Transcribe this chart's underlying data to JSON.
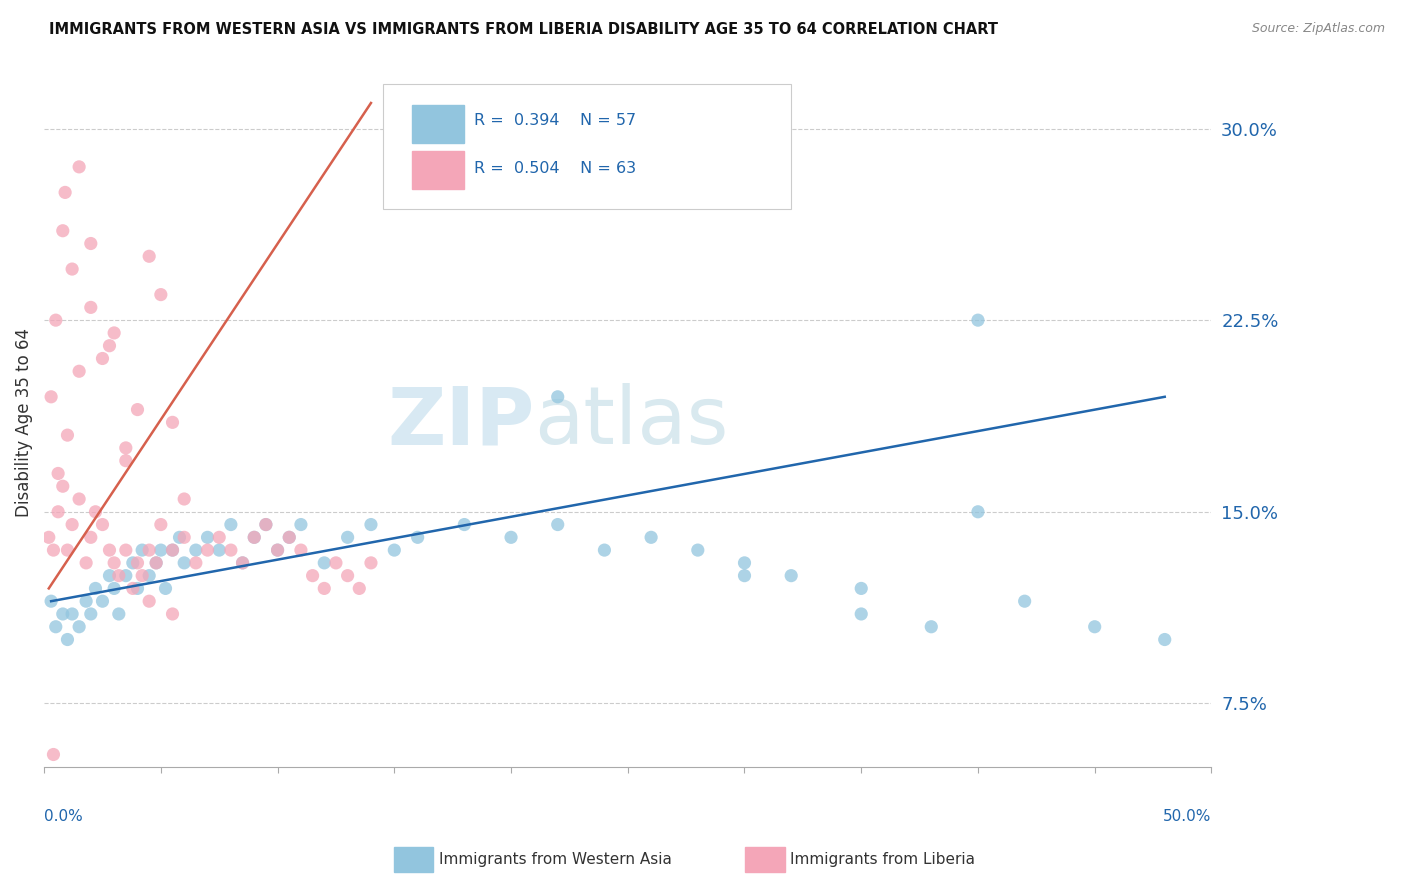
{
  "title": "IMMIGRANTS FROM WESTERN ASIA VS IMMIGRANTS FROM LIBERIA DISABILITY AGE 35 TO 64 CORRELATION CHART",
  "source": "Source: ZipAtlas.com",
  "ylabel": "Disability Age 35 to 64",
  "yticks": [
    7.5,
    15.0,
    22.5,
    30.0
  ],
  "ytick_labels": [
    "7.5%",
    "15.0%",
    "22.5%",
    "30.0%"
  ],
  "xlim": [
    0,
    50
  ],
  "ylim": [
    5.0,
    32.0
  ],
  "color_blue": "#92c5de",
  "color_pink": "#f4a6b8",
  "color_blue_dark": "#2166ac",
  "color_pink_dark": "#d6604d",
  "watermark_zip": "ZIP",
  "watermark_atlas": "atlas",
  "blue_scatter_x": [
    0.3,
    0.5,
    0.8,
    1.0,
    1.2,
    1.5,
    1.8,
    2.0,
    2.2,
    2.5,
    2.8,
    3.0,
    3.2,
    3.5,
    3.8,
    4.0,
    4.2,
    4.5,
    4.8,
    5.0,
    5.2,
    5.5,
    5.8,
    6.0,
    6.5,
    7.0,
    7.5,
    8.0,
    8.5,
    9.0,
    9.5,
    10.0,
    10.5,
    11.0,
    12.0,
    13.0,
    14.0,
    15.0,
    16.0,
    18.0,
    20.0,
    22.0,
    24.0,
    26.0,
    28.0,
    30.0,
    32.0,
    35.0,
    38.0,
    40.0,
    42.0,
    45.0,
    48.0,
    30.0,
    35.0,
    40.0,
    22.0
  ],
  "blue_scatter_y": [
    11.5,
    10.5,
    11.0,
    10.0,
    11.0,
    10.5,
    11.5,
    11.0,
    12.0,
    11.5,
    12.5,
    12.0,
    11.0,
    12.5,
    13.0,
    12.0,
    13.5,
    12.5,
    13.0,
    13.5,
    12.0,
    13.5,
    14.0,
    13.0,
    13.5,
    14.0,
    13.5,
    14.5,
    13.0,
    14.0,
    14.5,
    13.5,
    14.0,
    14.5,
    13.0,
    14.0,
    14.5,
    13.5,
    14.0,
    14.5,
    14.0,
    14.5,
    13.5,
    14.0,
    13.5,
    13.0,
    12.5,
    11.0,
    10.5,
    15.0,
    11.5,
    10.5,
    10.0,
    12.5,
    12.0,
    22.5,
    19.5
  ],
  "pink_scatter_x": [
    0.2,
    0.4,
    0.6,
    0.8,
    1.0,
    1.2,
    1.5,
    1.8,
    2.0,
    2.2,
    2.5,
    2.8,
    3.0,
    3.2,
    3.5,
    3.8,
    4.0,
    4.2,
    4.5,
    4.8,
    5.0,
    5.5,
    6.0,
    6.5,
    7.0,
    7.5,
    8.0,
    8.5,
    9.0,
    9.5,
    10.0,
    10.5,
    11.0,
    11.5,
    12.0,
    12.5,
    13.0,
    13.5,
    14.0,
    0.5,
    1.0,
    1.5,
    2.0,
    2.5,
    3.0,
    3.5,
    4.0,
    4.5,
    5.0,
    5.5,
    6.0,
    0.8,
    1.2,
    0.3,
    0.6,
    0.9,
    1.5,
    2.0,
    2.8,
    3.5,
    4.5,
    5.5,
    0.4
  ],
  "pink_scatter_y": [
    14.0,
    13.5,
    15.0,
    16.0,
    13.5,
    14.5,
    15.5,
    13.0,
    14.0,
    15.0,
    14.5,
    13.5,
    13.0,
    12.5,
    13.5,
    12.0,
    13.0,
    12.5,
    13.5,
    13.0,
    14.5,
    13.5,
    14.0,
    13.0,
    13.5,
    14.0,
    13.5,
    13.0,
    14.0,
    14.5,
    13.5,
    14.0,
    13.5,
    12.5,
    12.0,
    13.0,
    12.5,
    12.0,
    13.0,
    22.5,
    18.0,
    20.5,
    23.0,
    21.0,
    22.0,
    17.5,
    19.0,
    25.0,
    23.5,
    18.5,
    15.5,
    26.0,
    24.5,
    19.5,
    16.5,
    27.5,
    28.5,
    25.5,
    21.5,
    17.0,
    11.5,
    11.0,
    5.5
  ],
  "pink_trendline_x": [
    0.2,
    14.0
  ],
  "pink_trendline_y": [
    12.0,
    31.0
  ],
  "blue_trendline_x": [
    0.3,
    48.0
  ],
  "blue_trendline_y": [
    11.5,
    19.5
  ]
}
